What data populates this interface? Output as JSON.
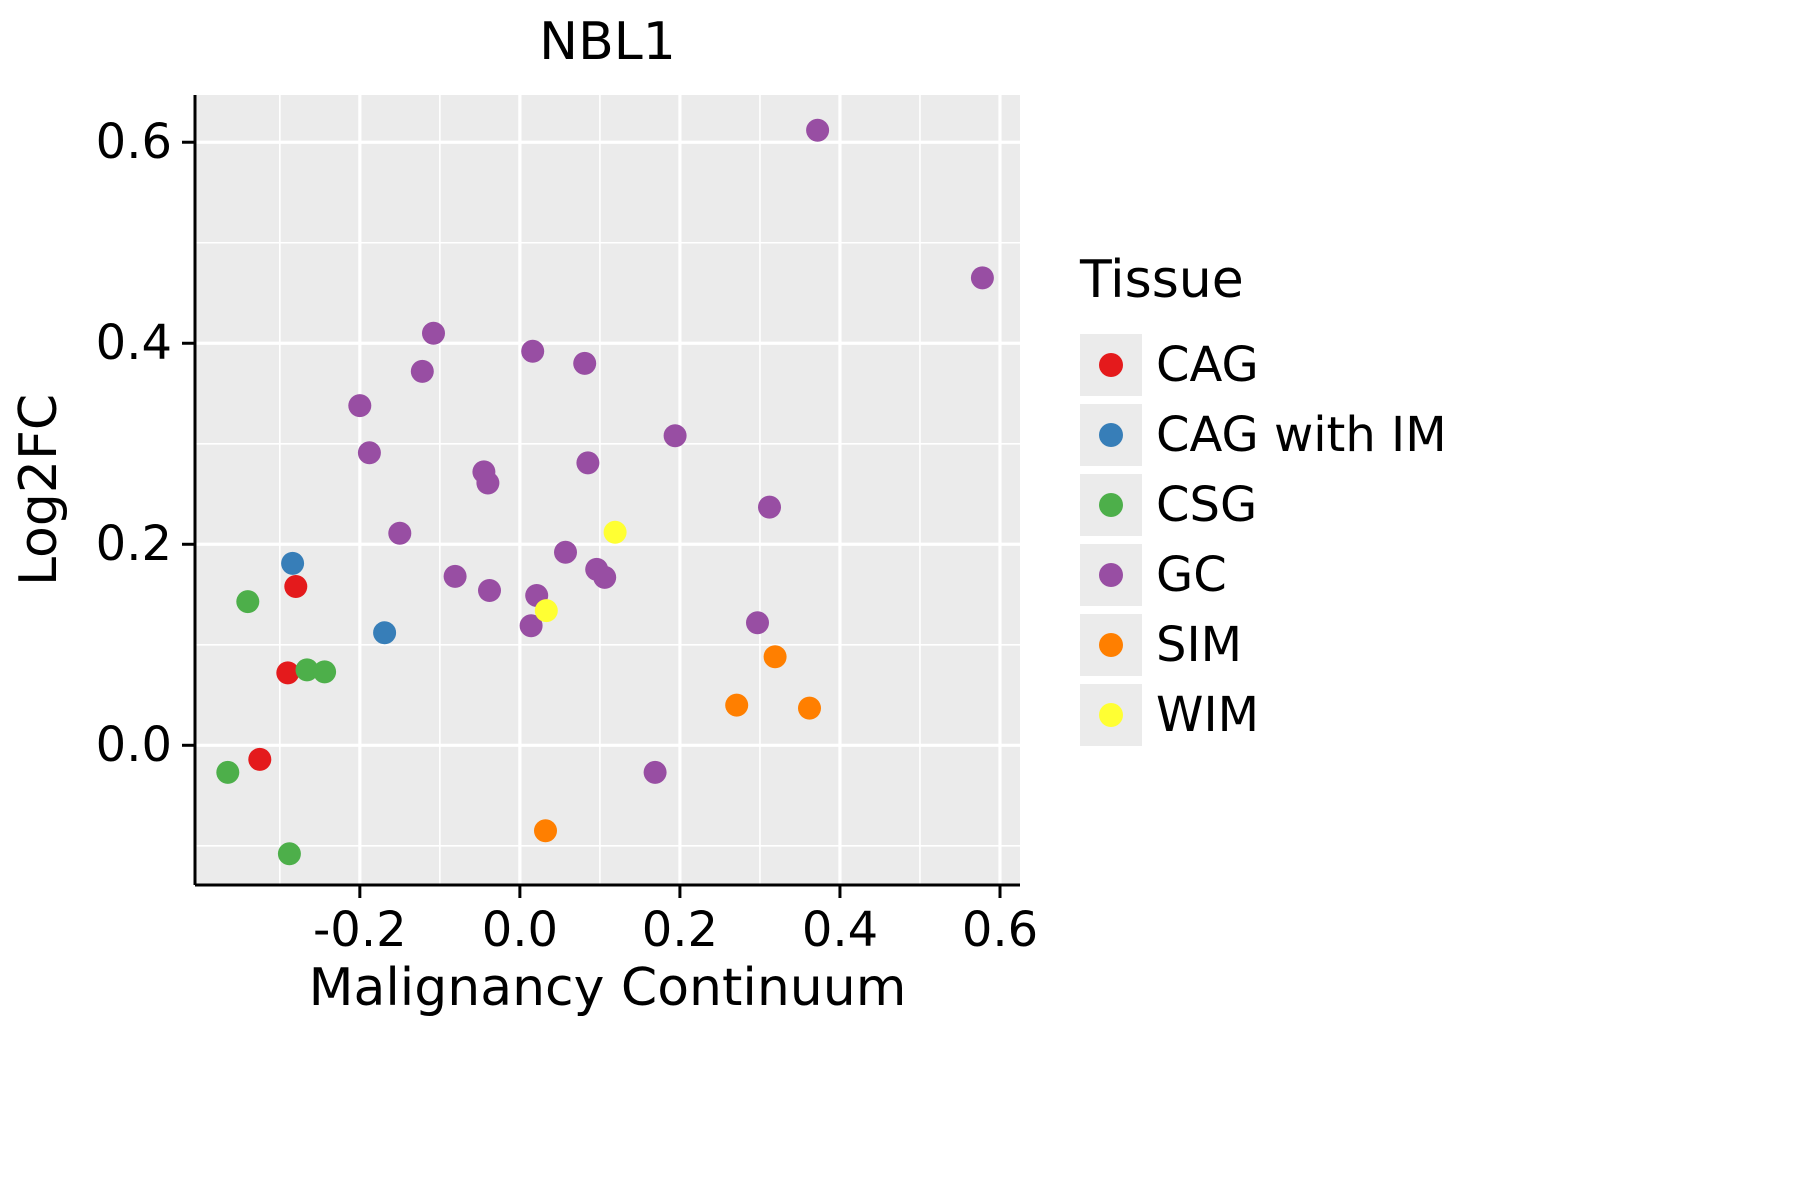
{
  "chart_data": {
    "type": "scatter",
    "title": "NBL1",
    "xlabel": "Malignancy Continuum",
    "ylabel": "Log2FC",
    "legend_title": "Tissue",
    "legend_position": "right",
    "grid": true,
    "panel_background": "#EBEBEB",
    "gridline_color": "#FFFFFF",
    "axis_color": "#000000",
    "xlim": [
      -0.406,
      0.625
    ],
    "ylim": [
      -0.139,
      0.647
    ],
    "x_major_ticks": [
      -0.2,
      0.0,
      0.2,
      0.4,
      0.6
    ],
    "x_tick_labels": [
      "-0.2",
      "0.0",
      "0.2",
      "0.4",
      "0.6"
    ],
    "x_minor_ticks": [
      -0.3,
      -0.1,
      0.1,
      0.3,
      0.5
    ],
    "y_major_ticks": [
      0.0,
      0.2,
      0.4,
      0.6
    ],
    "y_tick_labels": [
      "0.0",
      "0.2",
      "0.4",
      "0.6"
    ],
    "y_minor_ticks": [
      -0.1,
      0.1,
      0.3,
      0.5
    ],
    "series": [
      {
        "name": "CAG",
        "color": "#E41A1C",
        "points": [
          [
            -0.28,
            0.158
          ],
          [
            -0.29,
            0.072
          ],
          [
            -0.325,
            -0.014
          ]
        ]
      },
      {
        "name": "CAG with IM",
        "color": "#377EB8",
        "points": [
          [
            -0.284,
            0.181
          ],
          [
            -0.169,
            0.112
          ]
        ]
      },
      {
        "name": "CSG",
        "color": "#4DAF4A",
        "points": [
          [
            -0.34,
            0.143
          ],
          [
            -0.266,
            0.075
          ],
          [
            -0.244,
            0.073
          ],
          [
            -0.365,
            -0.027
          ],
          [
            -0.288,
            -0.108
          ]
        ]
      },
      {
        "name": "GC",
        "color": "#984EA3",
        "points": [
          [
            -0.2,
            0.338
          ],
          [
            -0.188,
            0.291
          ],
          [
            -0.122,
            0.372
          ],
          [
            -0.108,
            0.41
          ],
          [
            -0.15,
            0.211
          ],
          [
            -0.081,
            0.168
          ],
          [
            -0.045,
            0.272
          ],
          [
            -0.04,
            0.261
          ],
          [
            -0.038,
            0.154
          ],
          [
            0.016,
            0.392
          ],
          [
            0.014,
            0.119
          ],
          [
            0.021,
            0.149
          ],
          [
            0.057,
            0.192
          ],
          [
            0.081,
            0.38
          ],
          [
            0.085,
            0.281
          ],
          [
            0.096,
            0.175
          ],
          [
            0.106,
            0.167
          ],
          [
            0.194,
            0.308
          ],
          [
            0.169,
            -0.027
          ],
          [
            0.312,
            0.237
          ],
          [
            0.297,
            0.122
          ],
          [
            0.372,
            0.612
          ],
          [
            0.578,
            0.465
          ]
        ]
      },
      {
        "name": "SIM",
        "color": "#FF7F00",
        "points": [
          [
            0.271,
            0.04
          ],
          [
            0.319,
            0.088
          ],
          [
            0.362,
            0.037
          ],
          [
            0.032,
            -0.085
          ]
        ]
      },
      {
        "name": "WIM",
        "color": "#FFFF33",
        "points": [
          [
            0.119,
            0.212
          ],
          [
            0.033,
            0.134
          ]
        ]
      }
    ]
  }
}
